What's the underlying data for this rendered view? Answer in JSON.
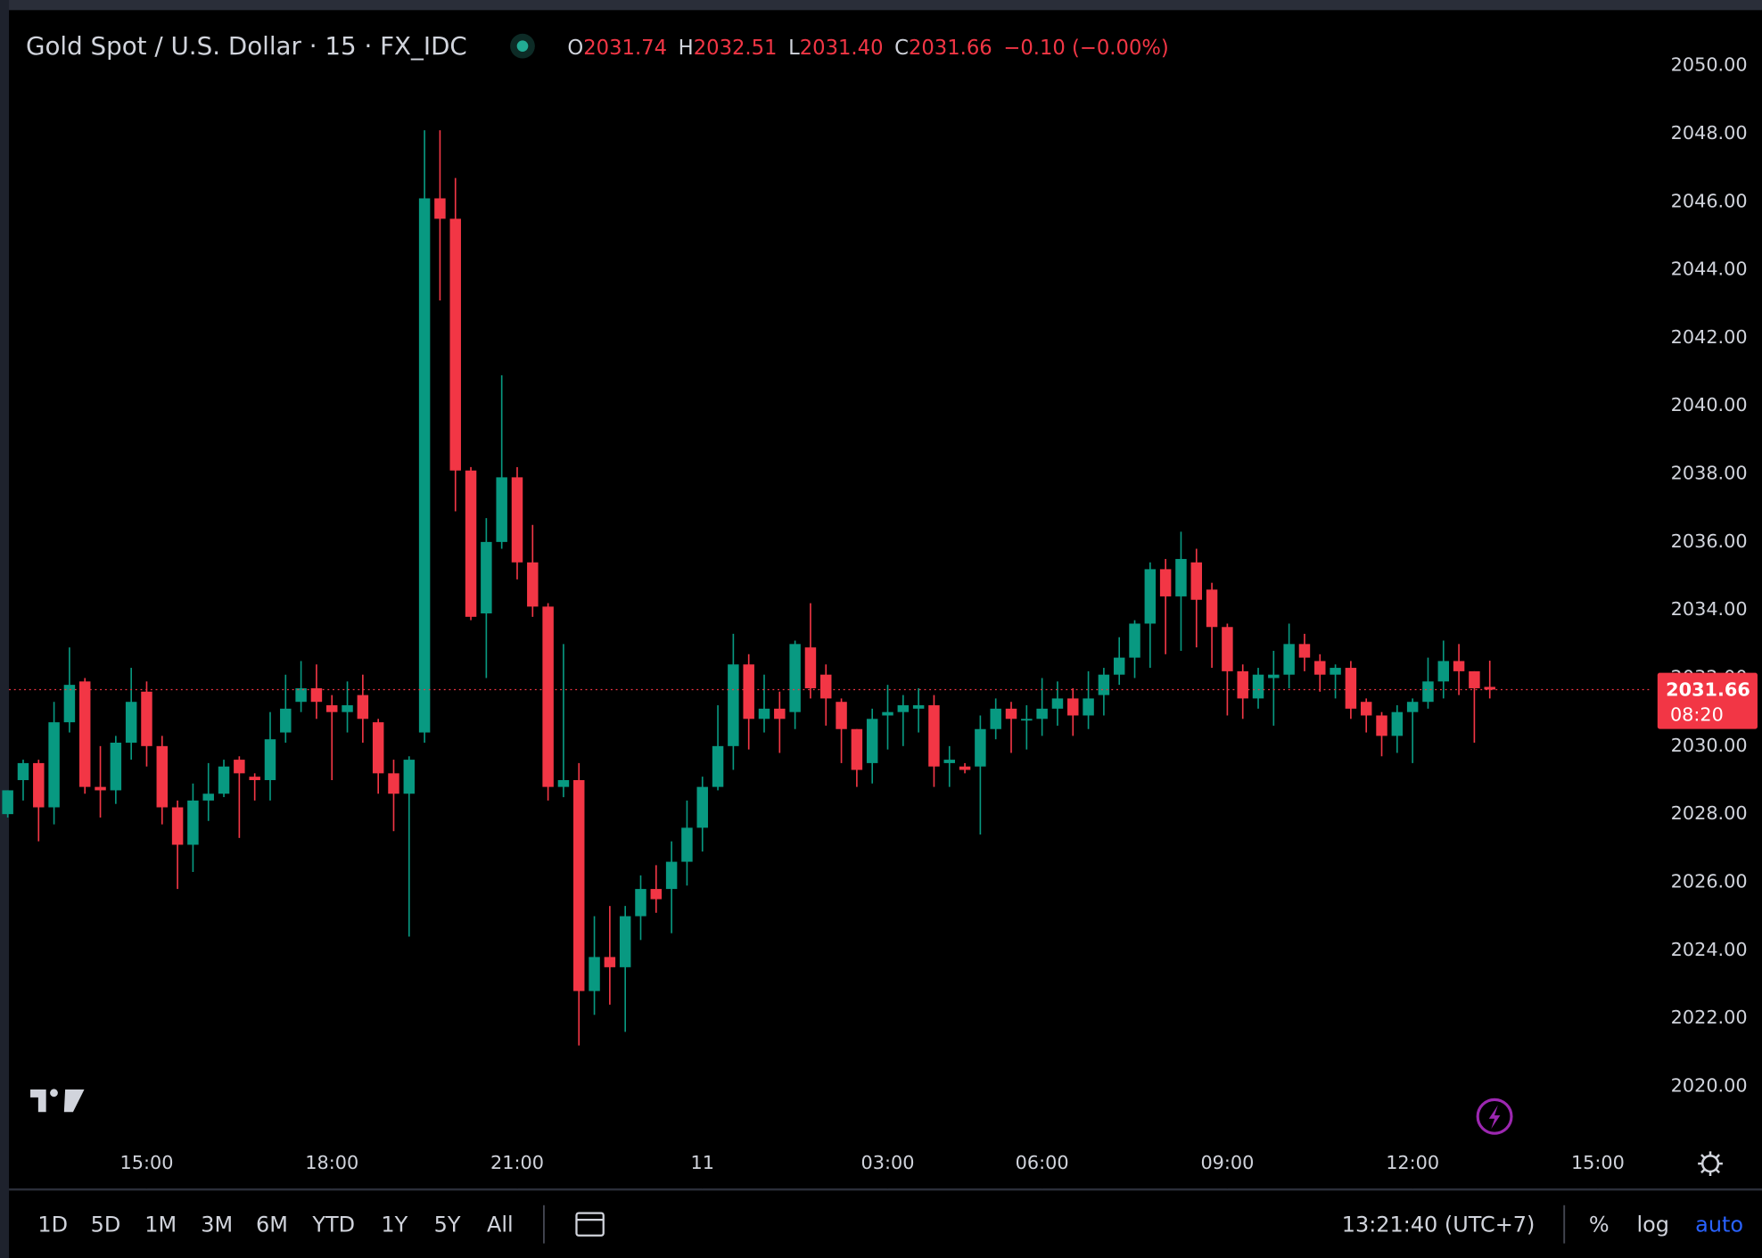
{
  "chart_data": {
    "type": "candlestick",
    "title": "Gold Spot / U.S. Dollar · 15 · FX_IDC",
    "legend_header": {
      "ohlc": [
        {
          "label": "O",
          "value": "2031.74"
        },
        {
          "label": "H",
          "value": "2032.51"
        },
        {
          "label": "L",
          "value": "2031.40"
        },
        {
          "label": "C",
          "value": "2031.66"
        }
      ],
      "change": "−0.10 (−0.00%)"
    },
    "categories": [
      null,
      null,
      null,
      null,
      null,
      null,
      null,
      null,
      null,
      "15:00",
      null,
      null,
      null,
      null,
      null,
      null,
      null,
      null,
      null,
      null,
      null,
      "18:00",
      null,
      null,
      null,
      null,
      null,
      null,
      null,
      null,
      null,
      null,
      null,
      "21:00",
      null,
      null,
      null,
      null,
      null,
      null,
      null,
      null,
      null,
      null,
      null,
      "11",
      null,
      null,
      null,
      null,
      null,
      null,
      null,
      null,
      null,
      null,
      null,
      "03:00",
      null,
      null,
      null,
      null,
      null,
      null,
      null,
      null,
      null,
      "06:00",
      null,
      null,
      null,
      null,
      null,
      null,
      null,
      null,
      null,
      null,
      null,
      "09:00",
      null,
      null,
      null,
      null,
      null,
      null,
      null,
      null,
      null,
      null,
      null,
      "12:00",
      null,
      null,
      null,
      null,
      null,
      null,
      null,
      null,
      null,
      null,
      null,
      "15:00",
      null,
      null,
      null
    ],
    "open": [
      2028.0,
      2029.0,
      2029.5,
      2028.2,
      2030.7,
      2031.9,
      2028.8,
      2028.7,
      2030.1,
      2031.6,
      2030.0,
      2028.2,
      2027.1,
      2028.4,
      2028.6,
      2029.6,
      2029.1,
      2029.0,
      2030.4,
      2031.3,
      2031.7,
      2031.2,
      2031.0,
      2031.5,
      2030.7,
      2029.2,
      2028.6,
      2030.4,
      2046.1,
      2045.5,
      2038.1,
      2033.9,
      2036.0,
      2037.9,
      2035.4,
      2034.1,
      2028.8,
      2029.0,
      2022.8,
      2023.8,
      2023.5,
      2025.0,
      2025.8,
      2025.8,
      2026.6,
      2027.6,
      2028.8,
      2030.0,
      2032.4,
      2030.8,
      2031.1,
      2031.0,
      2032.9,
      2032.1,
      2031.3,
      2030.5,
      2029.5,
      2030.9,
      2031.0,
      2031.1,
      2031.2,
      2029.5,
      2029.4,
      2029.4,
      2030.5,
      2031.1,
      2030.8,
      2030.8,
      2031.1,
      2031.4,
      2030.9,
      2031.5,
      2032.1,
      2032.6,
      2033.6,
      2035.2,
      2034.4,
      2035.4,
      2034.6,
      2033.5,
      2032.2,
      2031.4,
      2032.0,
      2032.1,
      2033.0,
      2032.5,
      2032.1,
      2032.3,
      2031.3,
      2030.9,
      2030.3,
      2031.0,
      2031.3,
      2031.9,
      2032.5,
      2032.2,
      2031.74,
      null,
      null,
      null,
      null,
      null,
      null,
      null,
      null,
      null,
      null
    ],
    "high": [
      2028.7,
      2029.6,
      2029.6,
      2031.3,
      2032.9,
      2032.0,
      2030.0,
      2030.3,
      2032.3,
      2031.9,
      2030.3,
      2028.4,
      2028.9,
      2029.5,
      2029.6,
      2029.7,
      2029.2,
      2031.0,
      2032.1,
      2032.5,
      2032.4,
      2031.5,
      2031.9,
      2032.1,
      2030.8,
      2029.6,
      2029.7,
      2048.1,
      2048.1,
      2046.7,
      2038.2,
      2036.7,
      2040.9,
      2038.2,
      2036.5,
      2034.2,
      2033.0,
      2029.5,
      2025.0,
      2025.3,
      2025.3,
      2026.2,
      2026.5,
      2027.2,
      2028.4,
      2029.1,
      2031.2,
      2033.3,
      2032.7,
      2032.1,
      2031.6,
      2033.1,
      2034.2,
      2032.4,
      2031.4,
      2030.5,
      2031.1,
      2031.8,
      2031.5,
      2031.7,
      2031.5,
      2030.0,
      2029.5,
      2030.9,
      2031.4,
      2031.3,
      2031.2,
      2032.0,
      2031.9,
      2031.7,
      2032.2,
      2032.3,
      2033.2,
      2033.7,
      2035.4,
      2035.5,
      2036.3,
      2035.8,
      2034.8,
      2033.6,
      2032.4,
      2032.3,
      2032.8,
      2033.6,
      2033.3,
      2032.7,
      2032.4,
      2032.5,
      2031.4,
      2031.0,
      2031.2,
      2031.4,
      2032.6,
      2033.1,
      2033.0,
      2032.2,
      2032.51,
      null,
      null,
      null,
      null,
      null,
      null,
      null,
      null,
      null,
      null
    ],
    "low": [
      2027.9,
      2028.4,
      2027.2,
      2027.7,
      2030.4,
      2028.6,
      2027.9,
      2028.3,
      2029.6,
      2029.4,
      2027.7,
      2025.8,
      2026.3,
      2027.8,
      2028.5,
      2027.3,
      2028.4,
      2028.4,
      2030.1,
      2031.0,
      2030.8,
      2029.0,
      2030.4,
      2030.1,
      2028.6,
      2027.5,
      2024.4,
      2030.1,
      2043.1,
      2036.9,
      2033.7,
      2032.0,
      2035.8,
      2034.9,
      2033.8,
      2028.4,
      2028.5,
      2021.2,
      2022.1,
      2022.4,
      2021.6,
      2024.3,
      2025.1,
      2024.5,
      2025.9,
      2026.9,
      2028.7,
      2029.3,
      2029.9,
      2030.4,
      2029.8,
      2030.5,
      2031.4,
      2030.6,
      2029.5,
      2028.8,
      2028.9,
      2029.9,
      2030.0,
      2030.4,
      2028.8,
      2028.8,
      2029.2,
      2027.4,
      2030.2,
      2029.8,
      2029.9,
      2030.3,
      2030.6,
      2030.3,
      2030.5,
      2030.9,
      2031.8,
      2032.0,
      2032.3,
      2032.7,
      2032.8,
      2032.9,
      2032.3,
      2030.9,
      2030.8,
      2031.1,
      2030.6,
      2031.7,
      2032.2,
      2031.6,
      2031.4,
      2030.8,
      2030.4,
      2029.7,
      2029.8,
      2029.5,
      2031.1,
      2031.4,
      2031.5,
      2030.1,
      2031.4,
      null,
      null,
      null,
      null,
      null,
      null,
      null,
      null,
      null,
      null
    ],
    "close": [
      2028.7,
      2029.5,
      2028.2,
      2030.7,
      2031.8,
      2028.8,
      2028.7,
      2030.1,
      2031.3,
      2030.0,
      2028.2,
      2027.1,
      2028.4,
      2028.6,
      2029.4,
      2029.2,
      2029.0,
      2030.2,
      2031.1,
      2031.7,
      2031.3,
      2031.0,
      2031.2,
      2030.8,
      2029.2,
      2028.6,
      2029.6,
      2046.1,
      2045.5,
      2038.1,
      2033.8,
      2036.0,
      2037.9,
      2035.4,
      2034.1,
      2028.8,
      2029.0,
      2022.8,
      2023.8,
      2023.5,
      2025.0,
      2025.8,
      2025.5,
      2026.6,
      2027.6,
      2028.8,
      2030.0,
      2032.4,
      2030.8,
      2031.1,
      2030.8,
      2033.0,
      2031.7,
      2031.4,
      2030.5,
      2029.3,
      2030.8,
      2031.0,
      2031.2,
      2031.2,
      2029.4,
      2029.6,
      2029.3,
      2030.5,
      2031.1,
      2030.8,
      2030.8,
      2031.1,
      2031.4,
      2030.9,
      2031.4,
      2032.1,
      2032.6,
      2033.6,
      2035.2,
      2034.4,
      2035.5,
      2034.3,
      2033.5,
      2032.2,
      2031.4,
      2032.1,
      2032.1,
      2033.0,
      2032.6,
      2032.1,
      2032.3,
      2031.1,
      2030.9,
      2030.3,
      2031.0,
      2031.3,
      2031.9,
      2032.5,
      2032.2,
      2031.7,
      2031.66,
      null,
      null,
      null,
      null,
      null,
      null,
      null,
      null,
      null,
      null
    ],
    "up_color": "#089981",
    "down_color": "#f23645",
    "ylim": [
      2017.0,
      2051.6
    ],
    "yticks": [
      {
        "value": 2020,
        "label": "2020.00"
      },
      {
        "value": 2022,
        "label": "2022.00"
      },
      {
        "value": 2024,
        "label": "2024.00"
      },
      {
        "value": 2026,
        "label": "2026.00"
      },
      {
        "value": 2028,
        "label": "2028.00"
      },
      {
        "value": 2030,
        "label": "2030.00"
      },
      {
        "value": 2032,
        "label": "2032.00"
      },
      {
        "value": 2034,
        "label": "2034.00"
      },
      {
        "value": 2036,
        "label": "2036.00"
      },
      {
        "value": 2038,
        "label": "2038.00"
      },
      {
        "value": 2040,
        "label": "2040.00"
      },
      {
        "value": 2042,
        "label": "2042.00"
      },
      {
        "value": 2044,
        "label": "2044.00"
      },
      {
        "value": 2046,
        "label": "2046.00"
      },
      {
        "value": 2048,
        "label": "2048.00"
      },
      {
        "value": 2050,
        "label": "2050.00"
      }
    ],
    "grid": false,
    "last_price": {
      "value": 2031.66,
      "label": "2031.66",
      "countdown": "08:20"
    }
  },
  "toolbar": {
    "ranges": [
      "1D",
      "5D",
      "1M",
      "3M",
      "6M",
      "YTD",
      "1Y",
      "5Y",
      "All"
    ],
    "clock": "13:21:40 (UTC+7)",
    "percent": "%",
    "log": "log",
    "auto": "auto"
  }
}
